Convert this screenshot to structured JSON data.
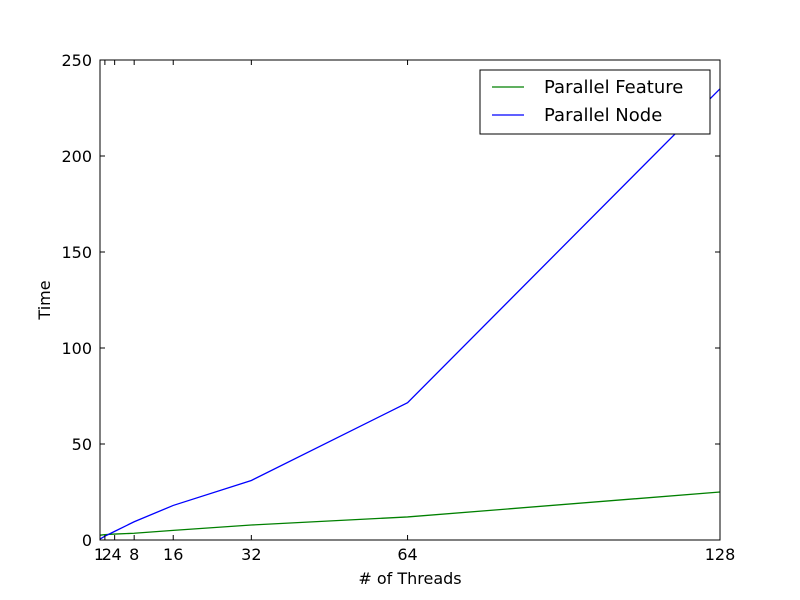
{
  "chart_data": {
    "type": "line",
    "title": "",
    "xlabel": "# of Threads",
    "ylabel": "Time",
    "xlim": [
      1,
      128
    ],
    "ylim": [
      0,
      250
    ],
    "x_ticks": [
      1,
      2,
      4,
      8,
      16,
      32,
      64,
      128
    ],
    "y_ticks": [
      0,
      50,
      100,
      150,
      200,
      250
    ],
    "grid": false,
    "legend_position": "top-right",
    "x": [
      1,
      2,
      4,
      8,
      16,
      32,
      64,
      128
    ],
    "series": [
      {
        "name": "Parallel Feature",
        "color": "#008000",
        "values": [
          2.5,
          2.8,
          3.1,
          3.5,
          5.0,
          7.8,
          12.0,
          25.0
        ]
      },
      {
        "name": "Parallel Node",
        "color": "#0000ff",
        "values": [
          0.5,
          2.0,
          4.5,
          9.5,
          18.0,
          31.0,
          71.5,
          235.0
        ]
      }
    ]
  }
}
